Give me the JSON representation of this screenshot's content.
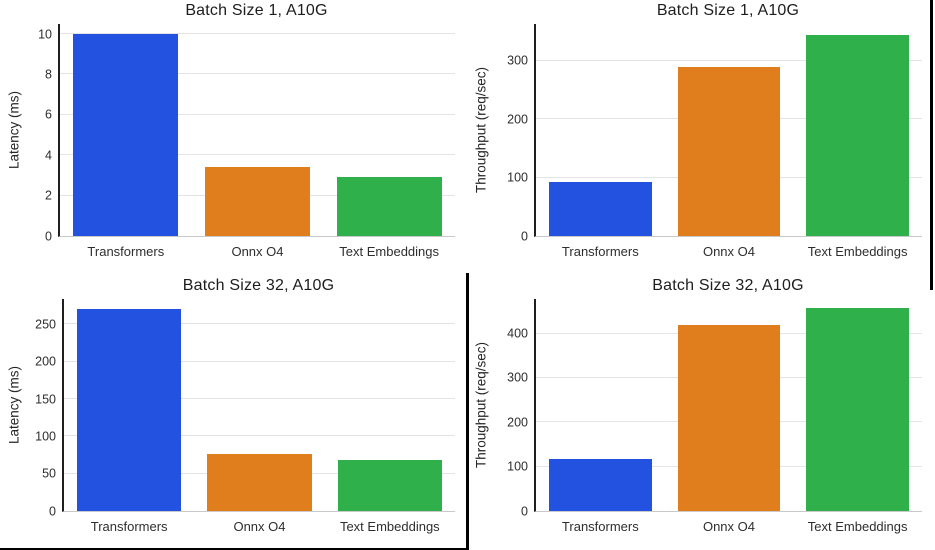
{
  "page": {
    "background": "#ffffff"
  },
  "palette": {
    "bar_colors": [
      "#2452e0",
      "#e07e1e",
      "#2fb04a"
    ],
    "grid_color": "#e4e4e4",
    "left_spine_color": "#1f1f1f",
    "baseline_color": "#c9c9c9",
    "text_color": "#2e2e2e",
    "title_color": "#1d1d1d",
    "divider_color": "#000000"
  },
  "chart_data": [
    {
      "type": "bar",
      "title": "Batch Size 1, A10G",
      "ylabel": "Latency (ms)",
      "xlabel": "",
      "categories": [
        "Transformers",
        "Onnx O4",
        "Text Embeddings"
      ],
      "values": [
        10.0,
        3.4,
        2.9
      ],
      "ylim": [
        0,
        10.5
      ],
      "yticks": [
        0,
        2,
        4,
        6,
        8,
        10
      ],
      "grid": "horizontal",
      "legend": "none"
    },
    {
      "type": "bar",
      "title": "Batch Size 1, A10G",
      "ylabel": "Throughput (req/sec)",
      "xlabel": "",
      "categories": [
        "Transformers",
        "Onnx O4",
        "Text Embeddings"
      ],
      "values": [
        93,
        290,
        345
      ],
      "ylim": [
        0,
        363
      ],
      "yticks": [
        0,
        100,
        200,
        300
      ],
      "grid": "horizontal",
      "legend": "none"
    },
    {
      "type": "bar",
      "title": "Batch Size 32, A10G",
      "ylabel": "Latency (ms)",
      "xlabel": "",
      "categories": [
        "Transformers",
        "Onnx O4",
        "Text Embeddings"
      ],
      "values": [
        270,
        76,
        69
      ],
      "ylim": [
        0,
        284
      ],
      "yticks": [
        0,
        50,
        100,
        150,
        200,
        250
      ],
      "grid": "horizontal",
      "legend": "none"
    },
    {
      "type": "bar",
      "title": "Batch Size 32, A10G",
      "ylabel": "Throughput (req/sec)",
      "xlabel": "",
      "categories": [
        "Transformers",
        "Onnx O4",
        "Text Embeddings"
      ],
      "values": [
        117,
        420,
        458
      ],
      "ylim": [
        0,
        478
      ],
      "yticks": [
        0,
        100,
        200,
        300,
        400
      ],
      "grid": "horizontal",
      "legend": "none"
    }
  ]
}
